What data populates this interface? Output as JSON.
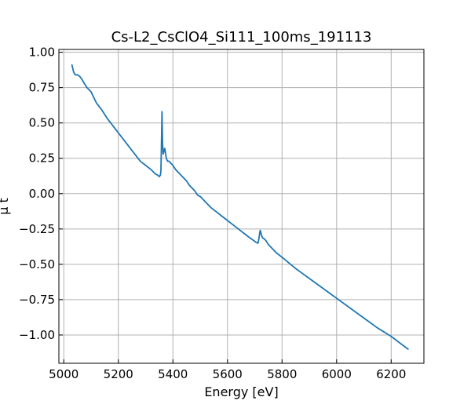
{
  "chart_data": {
    "type": "line",
    "title": "Cs-L2_CsClO4_Si111_100ms_191113",
    "xlabel": "Energy [eV]",
    "ylabel": "μ t",
    "xlim": [
      4982,
      6320
    ],
    "ylim": [
      -1.2,
      1.02
    ],
    "xticks": [
      5000,
      5200,
      5400,
      5600,
      5800,
      6000,
      6200
    ],
    "yticks": [
      1.0,
      0.75,
      0.5,
      0.25,
      0.0,
      -0.25,
      -0.5,
      -0.75,
      -1.0
    ],
    "xtick_labels": [
      "5000",
      "5200",
      "5400",
      "5600",
      "5800",
      "6000",
      "6200"
    ],
    "ytick_labels": [
      "1.00",
      "0.75",
      "0.50",
      "0.25",
      "0.00",
      "−0.25",
      "−0.50",
      "−0.75",
      "−1.00"
    ],
    "grid": true,
    "series": [
      {
        "color": "#1f77b4",
        "x": [
          5030,
          5036,
          5042,
          5050,
          5058,
          5066,
          5075,
          5085,
          5100,
          5110,
          5120,
          5140,
          5160,
          5180,
          5200,
          5220,
          5240,
          5260,
          5280,
          5300,
          5320,
          5335,
          5345,
          5350,
          5354,
          5356,
          5358,
          5360,
          5362,
          5364,
          5366,
          5368,
          5370,
          5372,
          5374,
          5376,
          5378,
          5380,
          5383,
          5386,
          5390,
          5395,
          5400,
          5410,
          5420,
          5430,
          5440,
          5450,
          5460,
          5470,
          5480,
          5490,
          5500,
          5520,
          5540,
          5560,
          5580,
          5600,
          5620,
          5640,
          5660,
          5680,
          5695,
          5705,
          5712,
          5715,
          5718,
          5720,
          5722,
          5724,
          5726,
          5728,
          5730,
          5735,
          5740,
          5745,
          5750,
          5755,
          5760,
          5780,
          5800,
          5850,
          5900,
          5950,
          6000,
          6050,
          6100,
          6150,
          6200,
          6262
        ],
        "y": [
          0.91,
          0.86,
          0.84,
          0.84,
          0.83,
          0.81,
          0.78,
          0.75,
          0.72,
          0.68,
          0.64,
          0.59,
          0.53,
          0.48,
          0.43,
          0.38,
          0.33,
          0.28,
          0.23,
          0.2,
          0.17,
          0.14,
          0.13,
          0.12,
          0.13,
          0.16,
          0.35,
          0.58,
          0.36,
          0.28,
          0.29,
          0.31,
          0.32,
          0.3,
          0.27,
          0.25,
          0.24,
          0.23,
          0.23,
          0.23,
          0.22,
          0.21,
          0.2,
          0.17,
          0.15,
          0.13,
          0.11,
          0.09,
          0.06,
          0.04,
          0.02,
          -0.01,
          -0.02,
          -0.06,
          -0.1,
          -0.13,
          -0.16,
          -0.19,
          -0.22,
          -0.25,
          -0.28,
          -0.31,
          -0.33,
          -0.345,
          -0.35,
          -0.32,
          -0.28,
          -0.26,
          -0.27,
          -0.29,
          -0.3,
          -0.31,
          -0.315,
          -0.32,
          -0.33,
          -0.345,
          -0.36,
          -0.37,
          -0.38,
          -0.42,
          -0.45,
          -0.53,
          -0.6,
          -0.67,
          -0.74,
          -0.81,
          -0.88,
          -0.95,
          -1.01,
          -1.1
        ]
      }
    ]
  }
}
